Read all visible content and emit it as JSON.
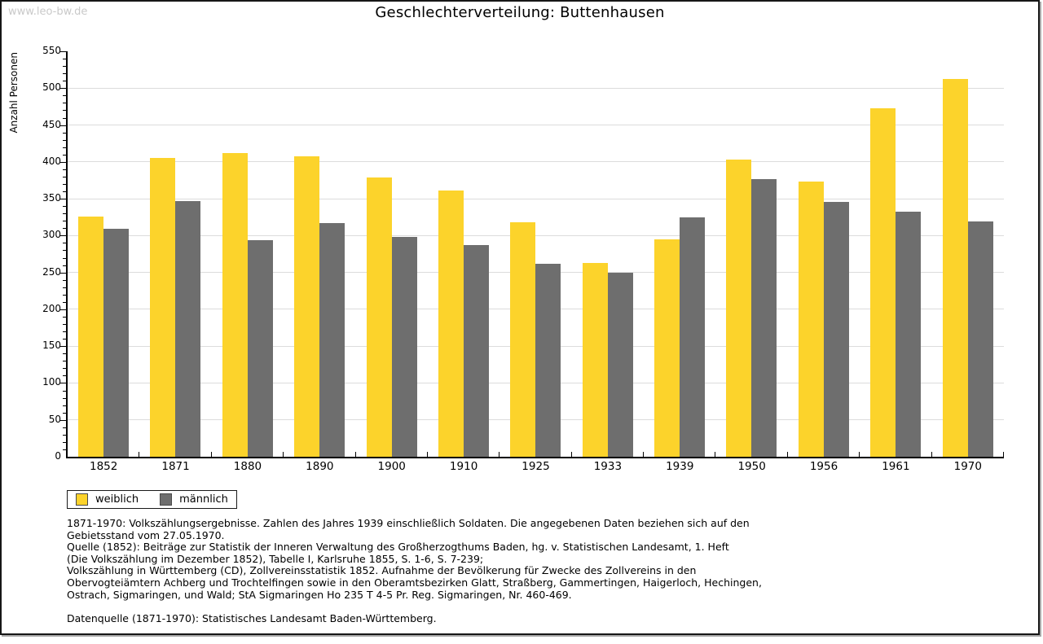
{
  "watermark": "www.leo-bw.de",
  "title": "Geschlechterverteilung: Buttenhausen",
  "chart_data": {
    "type": "bar",
    "title": "Geschlechterverteilung: Buttenhausen",
    "xlabel": "",
    "ylabel": "Anzahl Personen",
    "ylim": [
      0,
      550
    ],
    "ytick_step": 50,
    "minor_tick_step": 10,
    "grid": true,
    "legend_position": "bottom-left",
    "categories": [
      "1852",
      "1871",
      "1880",
      "1890",
      "1900",
      "1910",
      "1925",
      "1933",
      "1939",
      "1950",
      "1956",
      "1961",
      "1970"
    ],
    "series": [
      {
        "name": "weiblich",
        "color": "#FCD32B",
        "values": [
          326,
          405,
          412,
          408,
          379,
          361,
          318,
          263,
          295,
          403,
          373,
          473,
          512
        ]
      },
      {
        "name": "männlich",
        "color": "#6E6E6E",
        "values": [
          309,
          347,
          294,
          317,
          298,
          287,
          262,
          250,
          325,
          377,
          346,
          332,
          319
        ]
      }
    ]
  },
  "footnotes": {
    "lines": [
      "1871-1970: Volkszählungsergebnisse. Zahlen des Jahres 1939 einschließlich Soldaten. Die angegebenen Daten beziehen sich auf den",
      "Gebietsstand vom 27.05.1970.",
      "Quelle (1852): Beiträge zur Statistik der Inneren Verwaltung des Großherzogthums Baden, hg. v. Statistischen Landesamt, 1. Heft",
      "(Die Volkszählung im Dezember 1852), Tabelle I, Karlsruhe 1855, S. 1-6, S. 7-239;",
      "Volkszählung in Württemberg (CD), Zollvereinsstatistik 1852. Aufnahme der Bevölkerung für Zwecke des Zollvereins in den",
      "Obervogteiämtern Achberg und Trochtelfingen sowie in den Oberamtsbezirken Glatt, Straßberg, Gammertingen, Haigerloch, Hechingen,",
      "Ostrach, Sigmaringen, und Wald; StA Sigmaringen Ho 235 T 4-5 Pr. Reg. Sigmaringen, Nr. 460-469."
    ],
    "datasource": "Datenquelle (1871-1970): Statistisches Landesamt Baden-Württemberg."
  },
  "colors": {
    "weiblich": "#FCD32B",
    "männlich": "#6E6E6E",
    "gridline": "#DCDCDC",
    "axis": "#000000",
    "watermark": "#C9C9C9",
    "frame_border": "#161616"
  }
}
